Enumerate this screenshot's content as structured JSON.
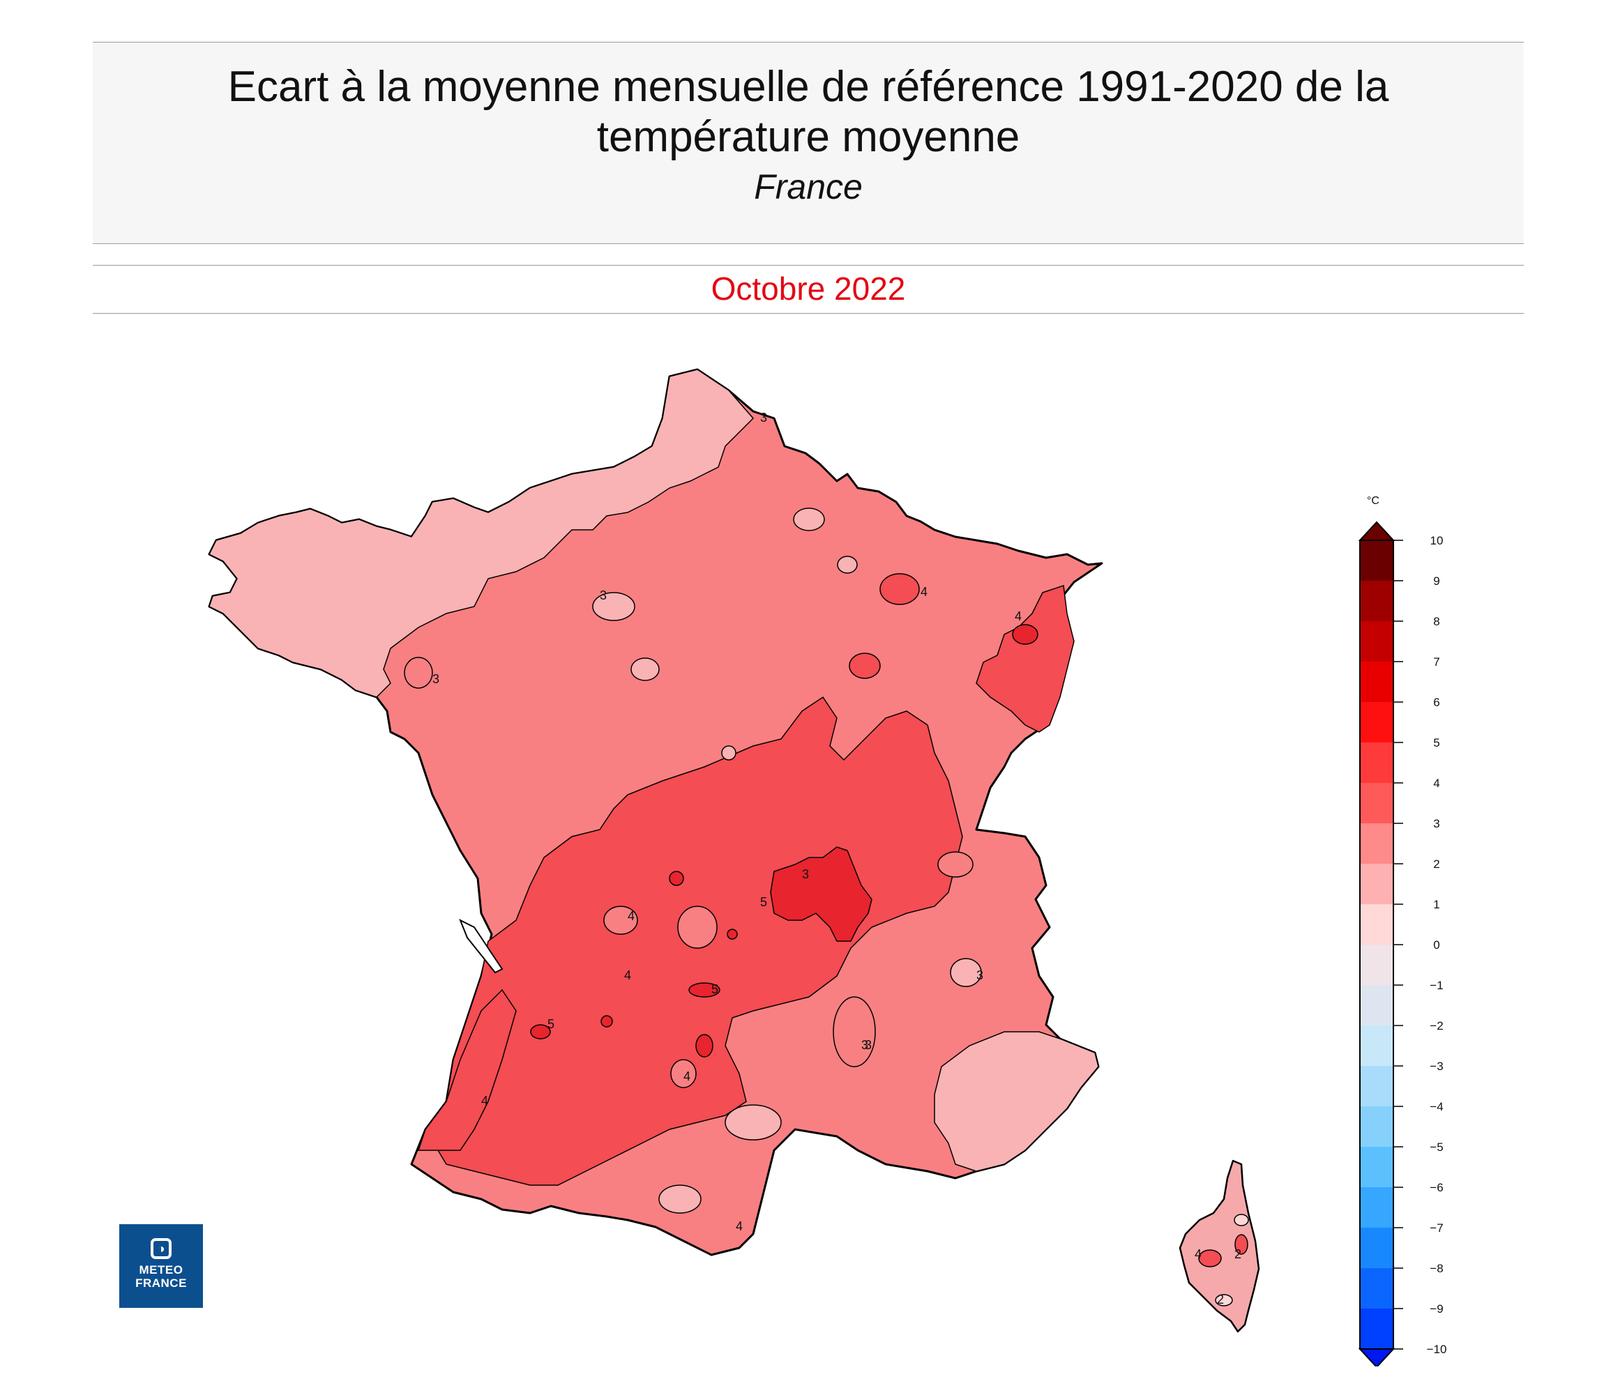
{
  "header": {
    "title": "Ecart à la moyenne mensuelle de référence 1991-2020 de la température moyenne",
    "region": "France"
  },
  "period": "Octobre 2022",
  "logo": {
    "line1": "METEO",
    "line2": "FRANCE"
  },
  "legend": {
    "unit": "°C",
    "levels": [
      10,
      9,
      8,
      7,
      6,
      5,
      4,
      3,
      2,
      1,
      0,
      -1,
      -2,
      -3,
      -4,
      -5,
      -6,
      -7,
      -8,
      -9,
      -10
    ],
    "colors": [
      "#6b0000",
      "#9e0000",
      "#c40000",
      "#e80000",
      "#ff1010",
      "#ff3a3a",
      "#ff5a5a",
      "#ff8a8a",
      "#ffb0b0",
      "#ffd8d8",
      "#f0e4e8",
      "#dde6f0",
      "#c8e8fa",
      "#a8dcfa",
      "#86d0fc",
      "#5cc0ff",
      "#36a6ff",
      "#1888ff",
      "#0a66ff",
      "#0040ff",
      "#0018f0"
    ]
  },
  "map": {
    "contour_labels": [
      "3",
      "3",
      "3",
      "3",
      "3",
      "4",
      "4",
      "4",
      "4",
      "4",
      "5",
      "5",
      "5",
      "4",
      "4",
      "3",
      "3",
      "2",
      "2",
      "4"
    ],
    "fill_colors": {
      "coastal_2_3": "#f9b3b5",
      "main_3_4": "#f98082",
      "central_4_5": "#f44d53",
      "hot_5_6": "#e8242e",
      "corsica": "#f6a9ab"
    }
  }
}
